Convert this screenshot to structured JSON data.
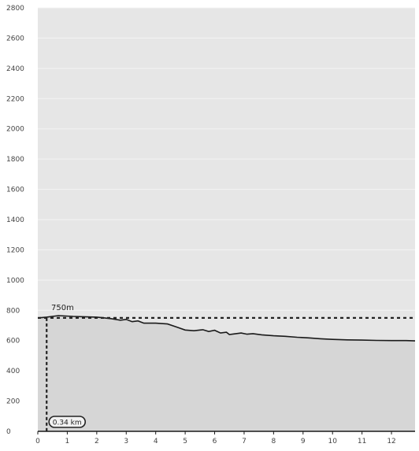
{
  "chart_data": {
    "type": "area",
    "title": "",
    "xlabel": "",
    "ylabel": "",
    "xlim": [
      0,
      12.8
    ],
    "ylim": [
      0,
      2800
    ],
    "x_ticks": [
      0,
      1,
      2,
      3,
      4,
      5,
      6,
      7,
      8,
      9,
      10,
      11,
      12
    ],
    "x_tick_labels": [
      "0",
      "1",
      "2",
      "3",
      "4",
      "5",
      "6",
      "7",
      "8",
      "9",
      "10",
      "11",
      "12"
    ],
    "y_ticks": [
      0,
      200,
      400,
      600,
      800,
      1000,
      1200,
      1400,
      1600,
      1800,
      2000,
      2200,
      2400,
      2600,
      2800
    ],
    "y_tick_labels": [
      "0",
      "200",
      "400",
      "600",
      "800",
      "1000",
      "1200",
      "1400",
      "1600",
      "1800",
      "2000",
      "2200",
      "2400",
      "2600",
      "2800"
    ],
    "grid": "horizontal",
    "series": [
      {
        "x": [
          0,
          0.3,
          0.7,
          1.2,
          2.0,
          2.5,
          2.8,
          3.0,
          3.2,
          3.4,
          3.6,
          4.0,
          4.4,
          4.7,
          5.0,
          5.3,
          5.6,
          5.8,
          6.0,
          6.2,
          6.4,
          6.5,
          6.7,
          6.9,
          7.1,
          7.3,
          7.6,
          8.0,
          8.4,
          8.8,
          9.2,
          9.6,
          10.0,
          10.5,
          11.0,
          11.5,
          12.0,
          12.5,
          12.8
        ],
        "y": [
          750,
          755,
          765,
          760,
          755,
          745,
          735,
          740,
          725,
          730,
          715,
          715,
          710,
          690,
          670,
          665,
          672,
          660,
          668,
          650,
          655,
          640,
          645,
          650,
          642,
          646,
          638,
          632,
          628,
          622,
          618,
          612,
          608,
          605,
          603,
          601,
          600,
          600,
          598
        ]
      }
    ],
    "reference_line": {
      "y": 750,
      "label": "750m"
    },
    "marker": {
      "x": 0.3,
      "label": "0.34 km"
    },
    "colors": {
      "plot_background": "#e6e6e6",
      "area_fill": "#d6d6d6",
      "line": "#1a1a1a",
      "grid": "#f4f4f4",
      "reference": "#222222",
      "tick_text": "#444444"
    }
  }
}
